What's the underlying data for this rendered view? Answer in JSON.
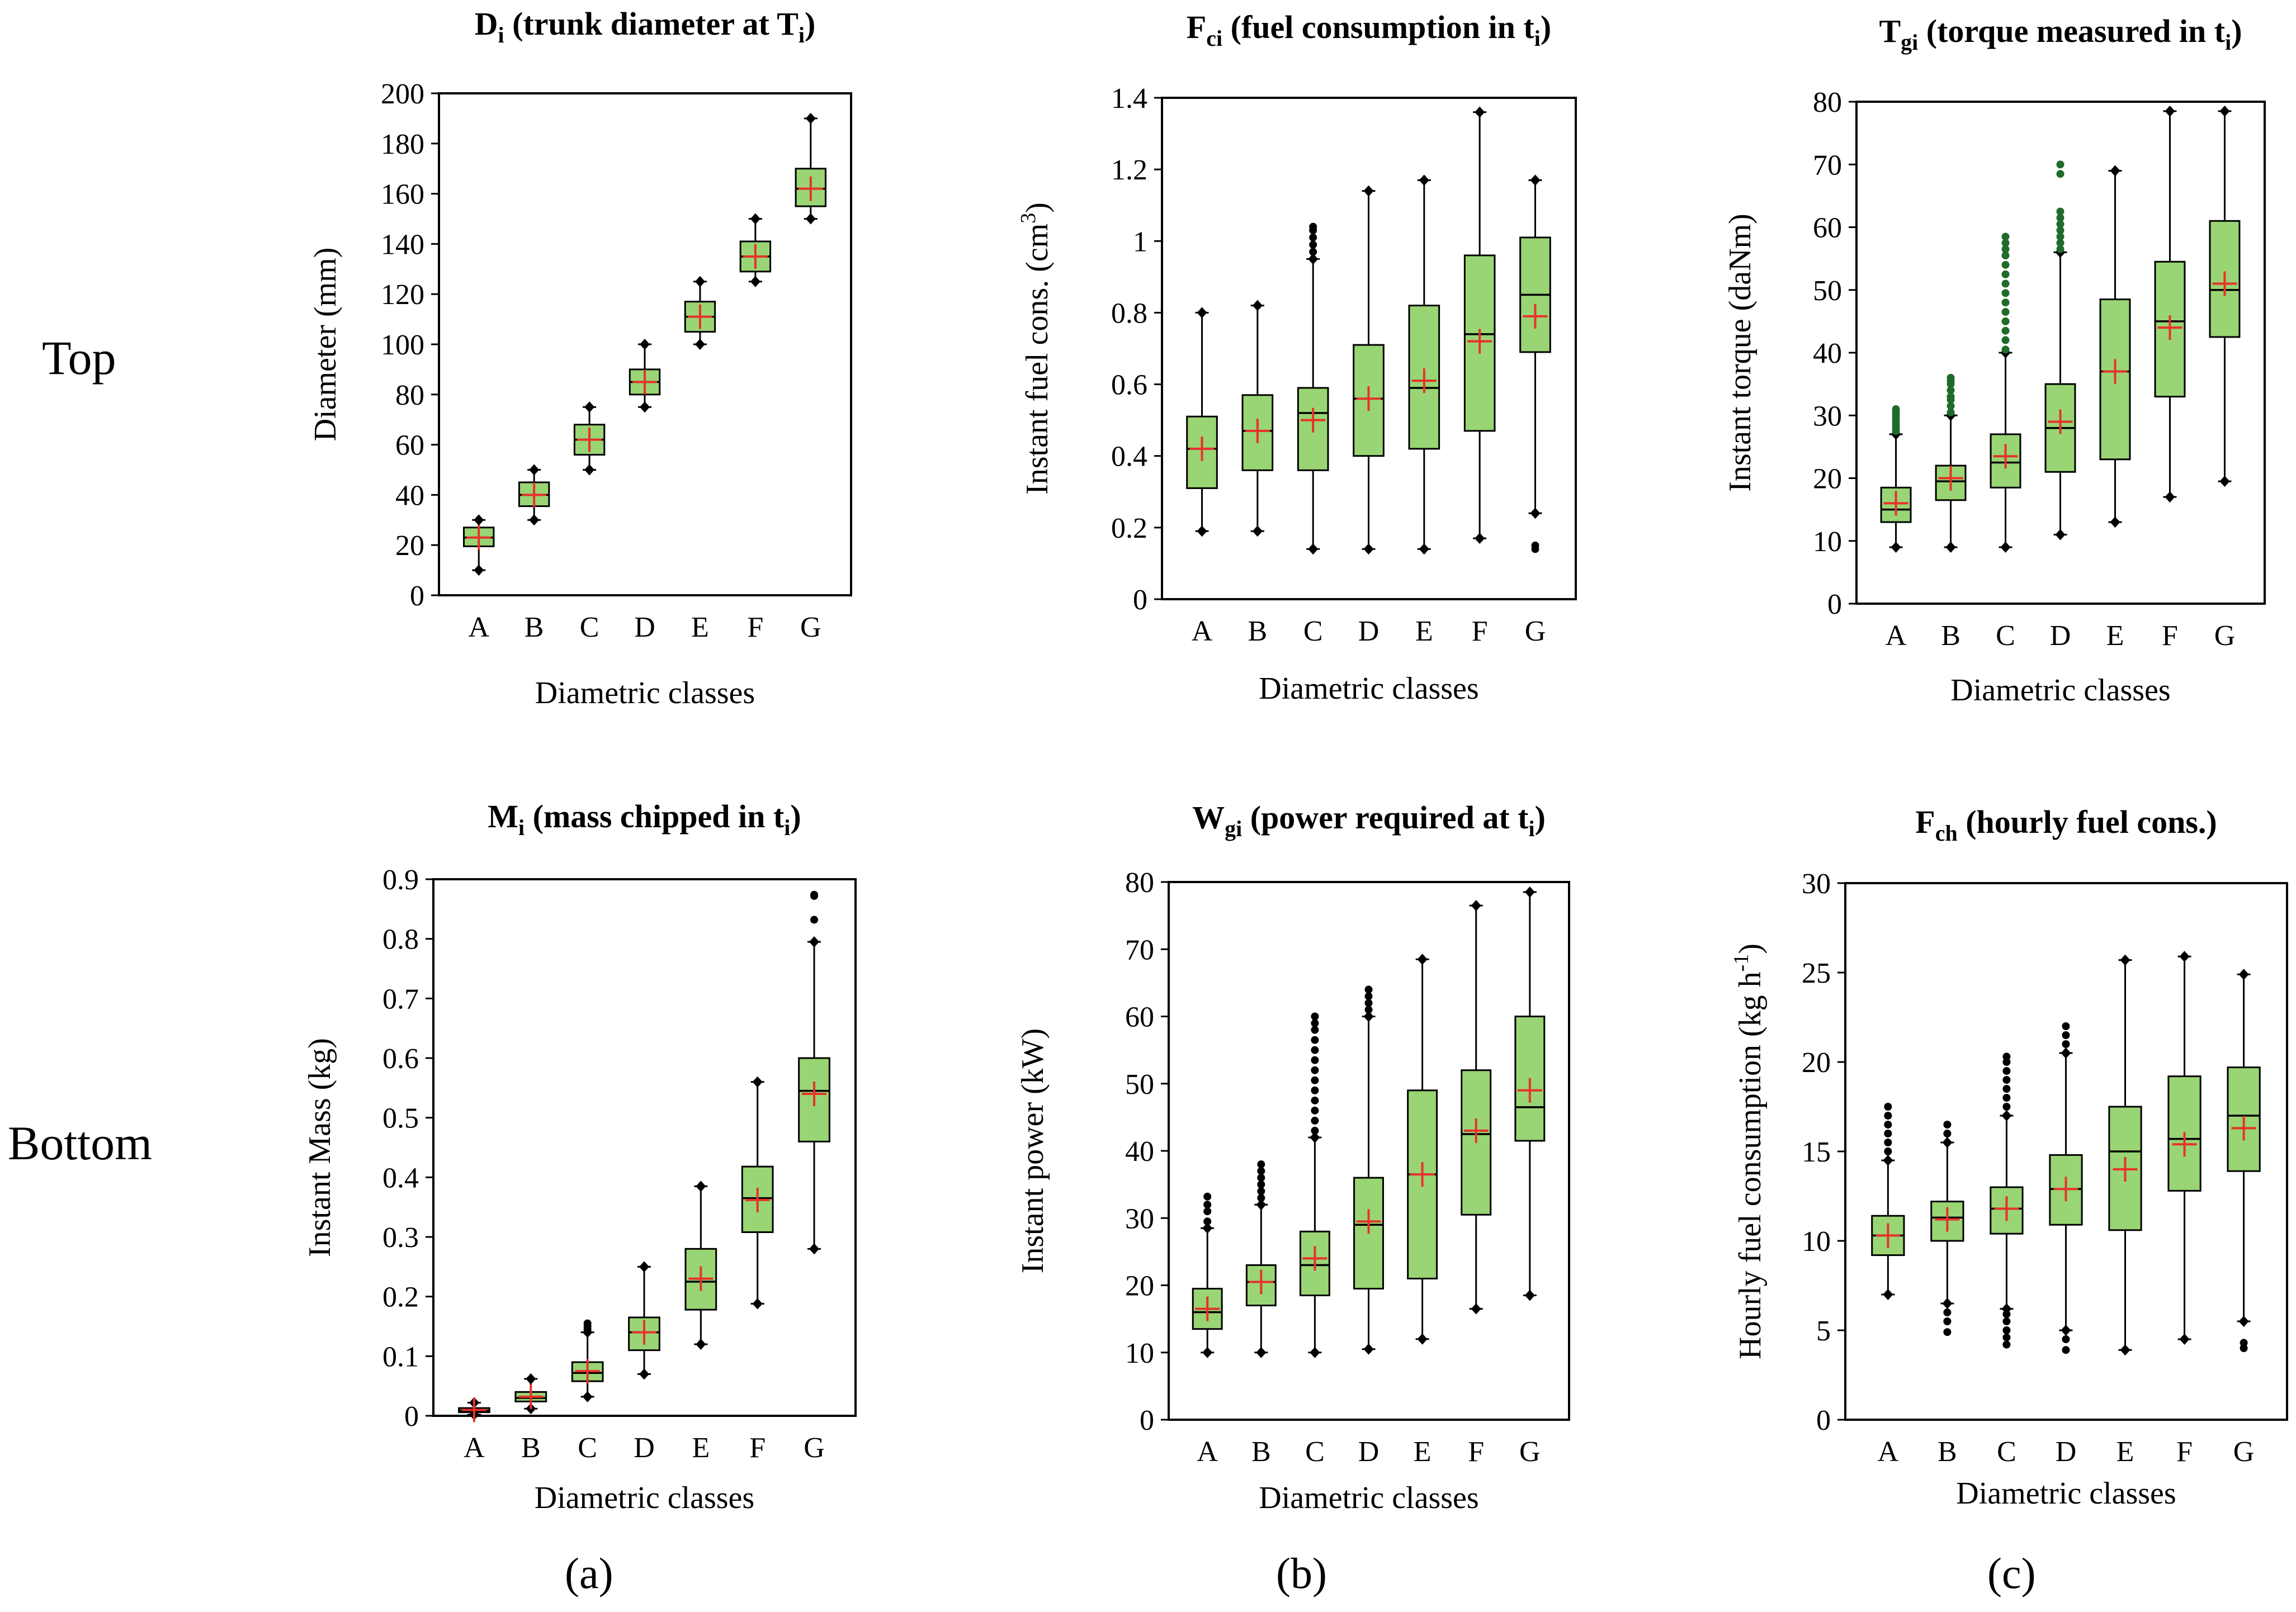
{
  "row_labels": {
    "top": "Top",
    "bottom": "Bottom"
  },
  "sub_labels": [
    "(a)",
    "(b)",
    "(c)"
  ],
  "colors": {
    "box_fill": "#99d574",
    "mean_marker": "#e8312a",
    "outlier_dark": "#000000",
    "outlier_green": "#1f6b2a"
  },
  "chart_data": [
    {
      "id": "Di",
      "type": "boxplot",
      "title": {
        "main": "D",
        "sub": "i",
        "rest": " (trunk diameter at T",
        "sub2": "i",
        "end": ")"
      },
      "xlabel": "Diametric classes",
      "ylabel": {
        "main": "Diameter (mm)",
        "sup": "",
        "end": ""
      },
      "categories": [
        "A",
        "B",
        "C",
        "D",
        "E",
        "F",
        "G"
      ],
      "ylim": [
        0,
        200
      ],
      "yticks": [
        0,
        20,
        40,
        60,
        80,
        100,
        120,
        140,
        160,
        180,
        200
      ],
      "ytick_labels": [
        "0",
        "20",
        "40",
        "60",
        "80",
        "100",
        "120",
        "140",
        "160",
        "180",
        "200"
      ],
      "boxes": [
        {
          "min": 10,
          "q1": 19.5,
          "median": 23,
          "q3": 27,
          "max": 30,
          "mean": 23,
          "outliers": []
        },
        {
          "min": 30,
          "q1": 35.5,
          "median": 40,
          "q3": 45,
          "max": 50,
          "mean": 40,
          "outliers": []
        },
        {
          "min": 50,
          "q1": 56,
          "median": 62,
          "q3": 68,
          "max": 75,
          "mean": 62,
          "outliers": []
        },
        {
          "min": 75,
          "q1": 80,
          "median": 85,
          "q3": 90,
          "max": 100,
          "mean": 85,
          "outliers": []
        },
        {
          "min": 100,
          "q1": 105,
          "median": 111,
          "q3": 117,
          "max": 125,
          "mean": 111,
          "outliers": []
        },
        {
          "min": 125,
          "q1": 129,
          "median": 135,
          "q3": 141,
          "max": 150,
          "mean": 135,
          "outliers": []
        },
        {
          "min": 150,
          "q1": 155,
          "median": 162,
          "q3": 170,
          "max": 190,
          "mean": 162,
          "outliers": []
        }
      ]
    },
    {
      "id": "Fci",
      "type": "boxplot",
      "title": {
        "main": "F",
        "sub": "ci",
        "rest": " (fuel consumption in t",
        "sub2": "i",
        "end": ")"
      },
      "xlabel": "Diametric classes",
      "ylabel": {
        "main": "Instant fuel cons. (cm",
        "sup": "3",
        "end": ")"
      },
      "categories": [
        "A",
        "B",
        "C",
        "D",
        "E",
        "F",
        "G"
      ],
      "ylim": [
        0,
        1.4
      ],
      "yticks": [
        0,
        0.2,
        0.4,
        0.6,
        0.8,
        1.0,
        1.2,
        1.4
      ],
      "ytick_labels": [
        "0",
        "0.2",
        "0.4",
        "0.6",
        "0.8",
        "1",
        "1.2",
        "1.4"
      ],
      "boxes": [
        {
          "min": 0.19,
          "q1": 0.31,
          "median": 0.42,
          "q3": 0.51,
          "max": 0.8,
          "mean": 0.42,
          "outliers": []
        },
        {
          "min": 0.19,
          "q1": 0.36,
          "median": 0.47,
          "q3": 0.57,
          "max": 0.82,
          "mean": 0.47,
          "outliers": []
        },
        {
          "min": 0.14,
          "q1": 0.36,
          "median": 0.52,
          "q3": 0.59,
          "max": 0.95,
          "mean": 0.5,
          "outliers": [
            0.97,
            0.99,
            1.01,
            1.03,
            1.04
          ]
        },
        {
          "min": 0.14,
          "q1": 0.4,
          "median": 0.56,
          "q3": 0.71,
          "max": 1.14,
          "mean": 0.56,
          "outliers": []
        },
        {
          "min": 0.14,
          "q1": 0.42,
          "median": 0.59,
          "q3": 0.82,
          "max": 1.17,
          "mean": 0.61,
          "outliers": []
        },
        {
          "min": 0.17,
          "q1": 0.47,
          "median": 0.74,
          "q3": 0.96,
          "max": 1.36,
          "mean": 0.72,
          "outliers": []
        },
        {
          "min": 0.24,
          "q1": 0.69,
          "median": 0.85,
          "q3": 1.01,
          "max": 1.17,
          "mean": 0.79,
          "outliers": [
            0.14,
            0.15
          ]
        }
      ]
    },
    {
      "id": "Tgi",
      "type": "boxplot",
      "title": {
        "main": "T",
        "sub": "gi",
        "rest": " (torque measured in t",
        "sub2": "i",
        "end": ")"
      },
      "xlabel": "Diametric classes",
      "ylabel": {
        "main": "Instant torque (daNm)",
        "sup": "",
        "end": ""
      },
      "categories": [
        "A",
        "B",
        "C",
        "D",
        "E",
        "F",
        "G"
      ],
      "ylim": [
        0,
        80
      ],
      "yticks": [
        0,
        10,
        20,
        30,
        40,
        50,
        60,
        70,
        80
      ],
      "ytick_labels": [
        "0",
        "10",
        "20",
        "30",
        "40",
        "50",
        "60",
        "70",
        "80"
      ],
      "outlier_style": "green",
      "boxes": [
        {
          "min": 9,
          "q1": 13,
          "median": 15,
          "q3": 18.5,
          "max": 27,
          "mean": 16,
          "outliers": [
            27.5,
            28,
            28.5,
            29,
            29.5,
            30,
            30.5,
            31
          ]
        },
        {
          "min": 9,
          "q1": 16.5,
          "median": 19.5,
          "q3": 22,
          "max": 30,
          "mean": 20,
          "outliers": [
            30.5,
            31.5,
            32.5,
            33,
            34,
            35,
            35.5,
            36
          ]
        },
        {
          "min": 9,
          "q1": 18.5,
          "median": 22.5,
          "q3": 27,
          "max": 40,
          "mean": 23.5,
          "outliers": [
            40.5,
            42,
            43.5,
            45,
            46.5,
            48,
            49.5,
            51,
            52.5,
            54,
            55.5,
            56.5,
            57.5,
            58.5
          ]
        },
        {
          "min": 11,
          "q1": 21,
          "median": 28,
          "q3": 35,
          "max": 56,
          "mean": 29,
          "outliers": [
            56.5,
            57.5,
            58.5,
            59.5,
            60.5,
            61.5,
            62.5,
            68.5,
            70
          ]
        },
        {
          "min": 13,
          "q1": 23,
          "median": 37,
          "q3": 48.5,
          "max": 69,
          "mean": 37,
          "outliers": []
        },
        {
          "min": 17,
          "q1": 33,
          "median": 45,
          "q3": 54.5,
          "max": 78.5,
          "mean": 44,
          "outliers": []
        },
        {
          "min": 19.5,
          "q1": 42.5,
          "median": 50,
          "q3": 61,
          "max": 78.5,
          "mean": 51,
          "outliers": []
        }
      ]
    },
    {
      "id": "Mi",
      "type": "boxplot",
      "title": {
        "main": "M",
        "sub": "i",
        "rest": " (mass chipped in  t",
        "sub2": "i",
        "end": ")"
      },
      "xlabel": "Diametric classes",
      "ylabel": {
        "main": "Instant Mass (kg)",
        "sup": "",
        "end": ""
      },
      "categories": [
        "A",
        "B",
        "C",
        "D",
        "E",
        "F",
        "G"
      ],
      "ylim": [
        0,
        0.9
      ],
      "yticks": [
        0,
        0.1,
        0.2,
        0.3,
        0.4,
        0.5,
        0.6,
        0.7,
        0.8,
        0.9
      ],
      "ytick_labels": [
        "0",
        "0.1",
        "0.2",
        "0.3",
        "0.4",
        "0.5",
        "0.6",
        "0.7",
        "0.8",
        "0.9"
      ],
      "boxes": [
        {
          "min": 0.002,
          "q1": 0.006,
          "median": 0.009,
          "q3": 0.013,
          "max": 0.022,
          "mean": 0.01,
          "outliers": []
        },
        {
          "min": 0.012,
          "q1": 0.024,
          "median": 0.03,
          "q3": 0.04,
          "max": 0.062,
          "mean": 0.032,
          "outliers": []
        },
        {
          "min": 0.032,
          "q1": 0.058,
          "median": 0.072,
          "q3": 0.09,
          "max": 0.14,
          "mean": 0.075,
          "outliers": [
            0.145,
            0.15,
            0.155
          ]
        },
        {
          "min": 0.07,
          "q1": 0.11,
          "median": 0.14,
          "q3": 0.165,
          "max": 0.25,
          "mean": 0.14,
          "outliers": []
        },
        {
          "min": 0.12,
          "q1": 0.178,
          "median": 0.225,
          "q3": 0.28,
          "max": 0.385,
          "mean": 0.23,
          "outliers": []
        },
        {
          "min": 0.188,
          "q1": 0.308,
          "median": 0.365,
          "q3": 0.418,
          "max": 0.56,
          "mean": 0.362,
          "outliers": []
        },
        {
          "min": 0.28,
          "q1": 0.46,
          "median": 0.545,
          "q3": 0.6,
          "max": 0.795,
          "mean": 0.54,
          "outliers": [
            0.832,
            0.872,
            0.874
          ]
        }
      ]
    },
    {
      "id": "Wgi",
      "type": "boxplot",
      "title": {
        "main": "W",
        "sub": "gi",
        "rest": " (power required at t",
        "sub2": "i",
        "end": ")"
      },
      "xlabel": "Diametric classes",
      "ylabel": {
        "main": "Instant power (kW)",
        "sup": "",
        "end": ""
      },
      "categories": [
        "A",
        "B",
        "C",
        "D",
        "E",
        "F",
        "G"
      ],
      "ylim": [
        0,
        80
      ],
      "yticks": [
        0,
        10,
        20,
        30,
        40,
        50,
        60,
        70,
        80
      ],
      "ytick_labels": [
        "0",
        "10",
        "20",
        "30",
        "40",
        "50",
        "60",
        "70",
        "80"
      ],
      "boxes": [
        {
          "min": 10,
          "q1": 13.5,
          "median": 16,
          "q3": 19.5,
          "max": 28.5,
          "mean": 16.5,
          "outliers": [
            29.5,
            31,
            32,
            33.2
          ]
        },
        {
          "min": 10,
          "q1": 17,
          "median": 20.5,
          "q3": 23,
          "max": 32,
          "mean": 20.5,
          "outliers": [
            33,
            34,
            35,
            36,
            37,
            38
          ]
        },
        {
          "min": 10,
          "q1": 18.5,
          "median": 23,
          "q3": 28,
          "max": 42,
          "mean": 24,
          "outliers": [
            43,
            44.5,
            46,
            47.5,
            49,
            50.5,
            52,
            53.5,
            55,
            56.5,
            58,
            59,
            60
          ]
        },
        {
          "min": 10.5,
          "q1": 19.5,
          "median": 29,
          "q3": 36,
          "max": 60,
          "mean": 29.5,
          "outliers": [
            61,
            62,
            63,
            64
          ]
        },
        {
          "min": 12,
          "q1": 21,
          "median": 36.5,
          "q3": 49,
          "max": 68.5,
          "mean": 36.5,
          "outliers": []
        },
        {
          "min": 16.5,
          "q1": 30.5,
          "median": 42.5,
          "q3": 52,
          "max": 76.5,
          "mean": 43,
          "outliers": []
        },
        {
          "min": 18.5,
          "q1": 41.5,
          "median": 46.5,
          "q3": 60,
          "max": 78.5,
          "mean": 49,
          "outliers": []
        }
      ]
    },
    {
      "id": "Fch",
      "type": "boxplot",
      "title": {
        "main": "F",
        "sub": "ch",
        "rest": " (hourly fuel cons.)",
        "sub2": "",
        "end": ""
      },
      "xlabel": "Diametric classes",
      "ylabel": {
        "main": "Hourly fuel consumption (kg h",
        "sup": "-1",
        "end": ")"
      },
      "categories": [
        "A",
        "B",
        "C",
        "D",
        "E",
        "F",
        "G"
      ],
      "ylim": [
        0,
        30
      ],
      "yticks": [
        0,
        5,
        10,
        15,
        20,
        25,
        30
      ],
      "ytick_labels": [
        "0",
        "5",
        "10",
        "15",
        "20",
        "25",
        "30"
      ],
      "boxes": [
        {
          "min": 7,
          "q1": 9.2,
          "median": 10.3,
          "q3": 11.4,
          "max": 14.5,
          "mean": 10.3,
          "outliers": [
            15,
            15.5,
            16,
            16.5,
            17,
            17.5
          ]
        },
        {
          "min": 6.5,
          "q1": 10,
          "median": 11.3,
          "q3": 12.2,
          "max": 15.5,
          "mean": 11.2,
          "outliers": [
            16,
            16.5,
            6,
            5.5,
            4.9
          ]
        },
        {
          "min": 6.2,
          "q1": 10.4,
          "median": 11.8,
          "q3": 13,
          "max": 17,
          "mean": 11.8,
          "outliers": [
            17.5,
            18,
            18.5,
            19,
            19.5,
            20,
            20.3,
            5.9,
            5.5,
            5,
            4.6,
            4.2
          ]
        },
        {
          "min": 5,
          "q1": 10.9,
          "median": 12.9,
          "q3": 14.8,
          "max": 20.5,
          "mean": 12.9,
          "outliers": [
            21,
            21.5,
            22,
            4.5,
            3.9
          ]
        },
        {
          "min": 3.9,
          "q1": 10.6,
          "median": 15,
          "q3": 17.5,
          "max": 25.7,
          "mean": 14,
          "outliers": []
        },
        {
          "min": 4.5,
          "q1": 12.8,
          "median": 15.7,
          "q3": 19.2,
          "max": 25.9,
          "mean": 15.4,
          "outliers": []
        },
        {
          "min": 5.5,
          "q1": 13.9,
          "median": 17,
          "q3": 19.7,
          "max": 24.9,
          "mean": 16.3,
          "outliers": [
            4.3,
            4
          ]
        }
      ]
    }
  ]
}
